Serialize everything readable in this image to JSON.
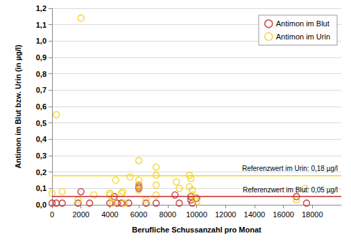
{
  "chart_data": {
    "type": "scatter",
    "x_label": "Berufliche Schussanzahl pro Monat",
    "y_label": "Antimon im Blut bzw. Urin (in µg/l)",
    "xlim": [
      0,
      20000
    ],
    "xticks": [
      0,
      2000,
      4000,
      6000,
      8000,
      10000,
      12000,
      14000,
      16000,
      18000
    ],
    "ylim": [
      0,
      1.2
    ],
    "yticks": [
      {
        "value": 0,
        "label": "0,0"
      },
      {
        "value": 0.1,
        "label": "0,1"
      },
      {
        "value": 0.2,
        "label": "0,2"
      },
      {
        "value": 0.3,
        "label": "0,3"
      },
      {
        "value": 0.4,
        "label": "0,4"
      },
      {
        "value": 0.5,
        "label": "0,5"
      },
      {
        "value": 0.6,
        "label": "0,6"
      },
      {
        "value": 0.7,
        "label": "0,7"
      },
      {
        "value": 0.8,
        "label": "0,8"
      },
      {
        "value": 0.9,
        "label": "0,9"
      },
      {
        "value": 1.0,
        "label": "1,0"
      },
      {
        "value": 1.1,
        "label": "1,1"
      },
      {
        "value": 1.2,
        "label": "1,2"
      }
    ],
    "grid": true,
    "legend": "top-right",
    "series": [
      {
        "name": "Antimon im Blut",
        "color": "#c0282d",
        "marker": "circle",
        "x": [
          0,
          300,
          700,
          1800,
          2000,
          2600,
          4000,
          4300,
          4500,
          4800,
          5300,
          6000,
          6000,
          6000,
          6500,
          7200,
          8500,
          8800,
          9600,
          9600,
          9700,
          10000,
          16900,
          17600
        ],
        "values": [
          0.01,
          0.01,
          0.01,
          0.01,
          0.08,
          0.01,
          0.01,
          0.05,
          0.01,
          0.01,
          0.01,
          0.12,
          0.1,
          0.11,
          0.01,
          0.01,
          0.06,
          0.01,
          0.05,
          0.03,
          0.01,
          0.04,
          0.05,
          0.01
        ]
      },
      {
        "name": "Antimon im Urin",
        "color": "#f2d21b",
        "marker": "circle",
        "x": [
          2000,
          300,
          0,
          700,
          1800,
          2900,
          4000,
          4000,
          4200,
          4400,
          4800,
          4900,
          5400,
          6000,
          6000,
          6000,
          6000,
          6500,
          7200,
          7200,
          7200,
          7200,
          8600,
          8800,
          9500,
          9600,
          9500,
          9700,
          9700,
          9900,
          10000,
          16900,
          17500,
          4200,
          5000
        ],
        "values": [
          1.14,
          0.55,
          0.07,
          0.08,
          0.03,
          0.06,
          0.07,
          0.06,
          0.04,
          0.15,
          0.07,
          0.08,
          0.17,
          0.27,
          0.15,
          0.12,
          0.09,
          0.03,
          0.23,
          0.18,
          0.12,
          0.06,
          0.14,
          0.1,
          0.18,
          0.16,
          0.11,
          0.09,
          0.06,
          0.04,
          0.02,
          0.03,
          0.1,
          0.01,
          0.01
        ]
      }
    ],
    "annotations": [
      {
        "series": "Antimon im Urin",
        "y": 0.18,
        "text": "Referenzwert im Urin: 0,18 µg/l"
      },
      {
        "series": "Antimon im Blut",
        "y": 0.05,
        "text": "Referenzwert im Blut: 0,05 µg/l"
      }
    ]
  }
}
